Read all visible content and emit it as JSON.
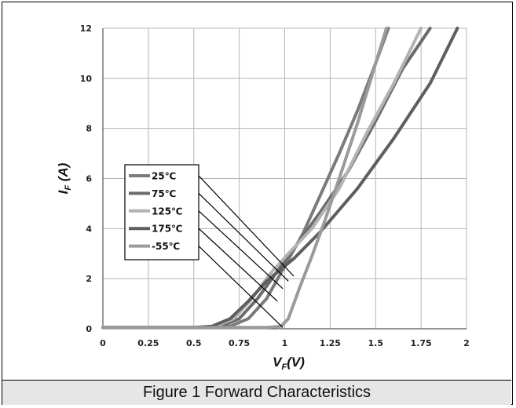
{
  "figure_caption": "Figure 1 Forward Characteristics",
  "chart_data": {
    "type": "line",
    "title": "",
    "xlabel_main": "V",
    "xlabel_sub": "F",
    "xlabel_unit": "(V)",
    "ylabel_main": "I",
    "ylabel_sub": "F",
    "ylabel_unit": " (A)",
    "xlim": [
      0,
      2
    ],
    "ylim": [
      0,
      12
    ],
    "x_ticks": [
      "0",
      "0.25",
      "0.5",
      "0.75",
      "1",
      "1.25",
      "1.5",
      "1.75",
      "2"
    ],
    "y_ticks": [
      "0",
      "2",
      "4",
      "6",
      "8",
      "10",
      "12"
    ],
    "grid": true,
    "legend_position": "left",
    "series": [
      {
        "name": "25℃",
        "color": "#7a7a7a",
        "points": [
          [
            0,
            0.05
          ],
          [
            0.5,
            0.05
          ],
          [
            0.7,
            0.1
          ],
          [
            0.8,
            0.4
          ],
          [
            0.9,
            1.2
          ],
          [
            1.0,
            2.5
          ],
          [
            1.1,
            3.8
          ],
          [
            1.2,
            5.4
          ],
          [
            1.3,
            7.0
          ],
          [
            1.4,
            8.7
          ],
          [
            1.5,
            10.6
          ],
          [
            1.57,
            12
          ]
        ]
      },
      {
        "name": "75℃",
        "color": "#6b6b6b",
        "points": [
          [
            0,
            0.05
          ],
          [
            0.5,
            0.05
          ],
          [
            0.65,
            0.1
          ],
          [
            0.75,
            0.4
          ],
          [
            0.85,
            1.2
          ],
          [
            0.95,
            2.2
          ],
          [
            1.05,
            3.2
          ],
          [
            1.2,
            4.7
          ],
          [
            1.35,
            6.3
          ],
          [
            1.5,
            8.3
          ],
          [
            1.65,
            10.4
          ],
          [
            1.8,
            12
          ]
        ]
      },
      {
        "name": "125℃",
        "color": "#b3b3b3",
        "points": [
          [
            0,
            0.05
          ],
          [
            0.5,
            0.05
          ],
          [
            0.62,
            0.1
          ],
          [
            0.72,
            0.4
          ],
          [
            0.82,
            1.2
          ],
          [
            0.92,
            2.2
          ],
          [
            1.02,
            3.0
          ],
          [
            1.15,
            4.0
          ],
          [
            1.3,
            5.6
          ],
          [
            1.45,
            7.8
          ],
          [
            1.6,
            9.8
          ],
          [
            1.75,
            12
          ]
        ]
      },
      {
        "name": "175℃",
        "color": "#5e5e5e",
        "points": [
          [
            0,
            0.05
          ],
          [
            0.5,
            0.05
          ],
          [
            0.6,
            0.1
          ],
          [
            0.7,
            0.4
          ],
          [
            0.8,
            1.1
          ],
          [
            0.9,
            1.9
          ],
          [
            1.05,
            2.8
          ],
          [
            1.2,
            3.9
          ],
          [
            1.4,
            5.6
          ],
          [
            1.6,
            7.6
          ],
          [
            1.8,
            9.8
          ],
          [
            1.95,
            12
          ]
        ]
      },
      {
        "name": "-55℃",
        "color": "#9a9a9a",
        "points": [
          [
            0,
            0.05
          ],
          [
            0.9,
            0.05
          ],
          [
            0.98,
            0.1
          ],
          [
            1.02,
            0.4
          ],
          [
            1.08,
            1.6
          ],
          [
            1.15,
            2.9
          ],
          [
            1.22,
            4.3
          ],
          [
            1.3,
            6.0
          ],
          [
            1.4,
            8.2
          ],
          [
            1.5,
            10.6
          ],
          [
            1.56,
            12
          ]
        ]
      }
    ],
    "legend_callouts": [
      {
        "series": "25℃",
        "target": [
          1.05,
          2.1
        ]
      },
      {
        "series": "75℃",
        "target": [
          1.02,
          1.9
        ]
      },
      {
        "series": "125℃",
        "target": [
          0.99,
          1.6
        ]
      },
      {
        "series": "175℃",
        "target": [
          0.96,
          1.1
        ]
      },
      {
        "series": "-55℃",
        "target": [
          0.99,
          0.05
        ]
      }
    ]
  }
}
